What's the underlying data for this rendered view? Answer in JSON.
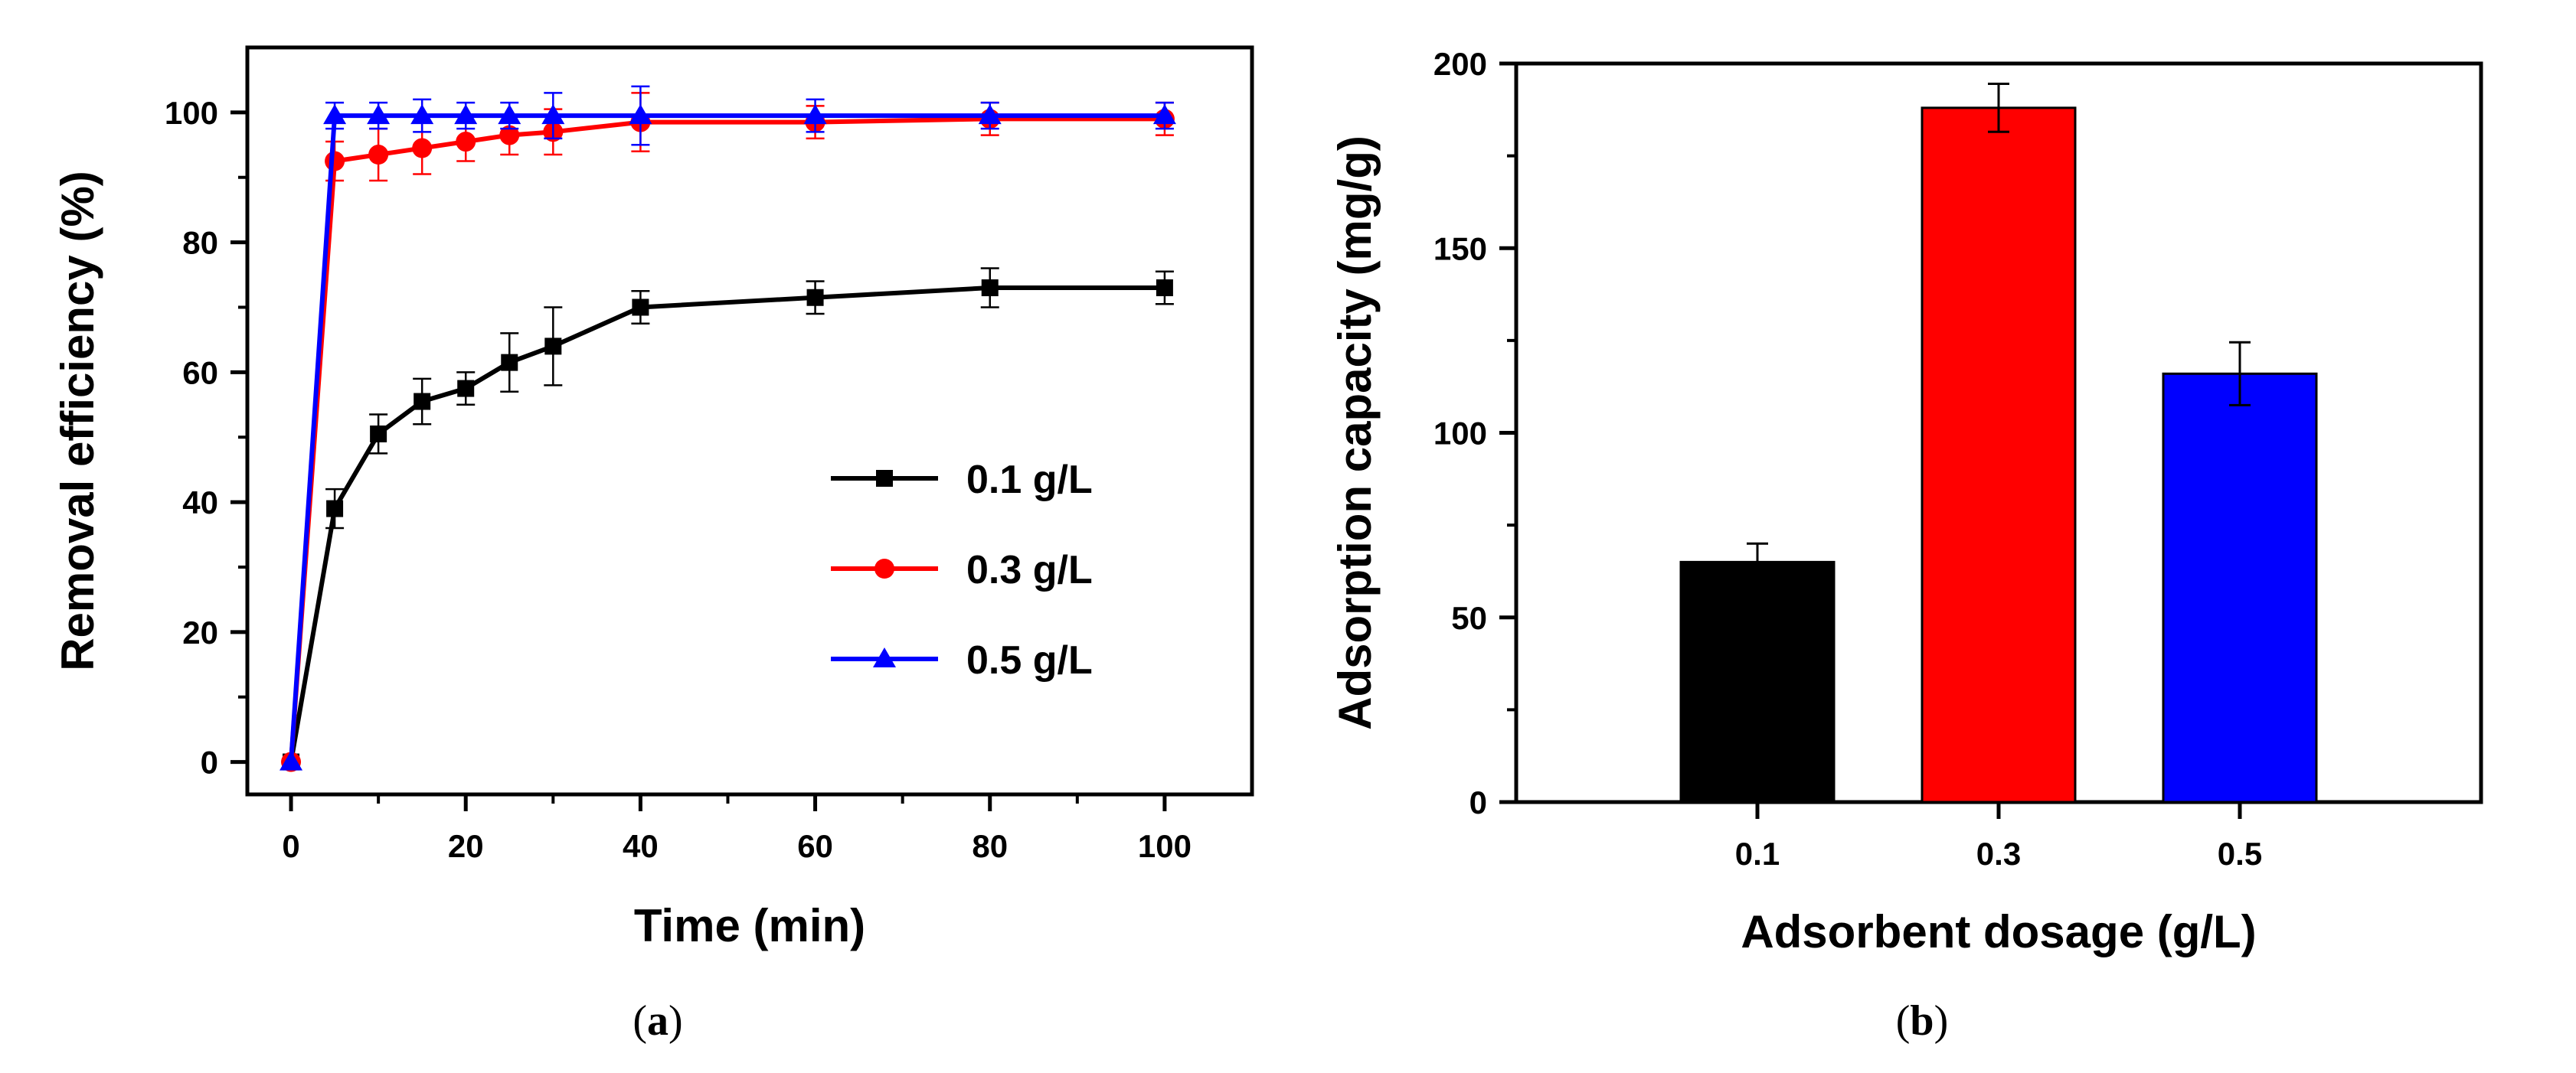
{
  "chart_data": [
    {
      "type": "line",
      "panel_label": "(a)",
      "panel_letter": "a",
      "xlabel": "Time (min)",
      "ylabel": "Removal efficiency (%)",
      "xlim": [
        -5,
        110
      ],
      "ylim": [
        -5,
        110
      ],
      "xticks": [
        0,
        20,
        40,
        60,
        80,
        100
      ],
      "yticks": [
        0,
        20,
        40,
        60,
        80,
        100
      ],
      "legend_position": "center-right",
      "series": [
        {
          "name": "0.1 g/L",
          "color": "#000000",
          "marker": "square",
          "x": [
            0,
            5,
            10,
            15,
            20,
            25,
            30,
            40,
            60,
            80,
            100
          ],
          "y": [
            0,
            39,
            50.5,
            55.5,
            57.5,
            61.5,
            64,
            70,
            71.5,
            73,
            73
          ],
          "err": [
            0,
            3,
            3,
            3.5,
            2.5,
            4.5,
            6,
            2.5,
            2.5,
            3,
            2.5
          ]
        },
        {
          "name": "0.3 g/L",
          "color": "#ff0000",
          "marker": "circle",
          "x": [
            0,
            5,
            10,
            15,
            20,
            25,
            30,
            40,
            60,
            80,
            100
          ],
          "y": [
            0,
            92.5,
            93.5,
            94.5,
            95.5,
            96.5,
            97,
            98.5,
            98.5,
            99,
            99
          ],
          "err": [
            0,
            3,
            4,
            4,
            3,
            3,
            3.5,
            4.5,
            2.5,
            2.5,
            2.5
          ]
        },
        {
          "name": "0.5 g/L",
          "color": "#0000ff",
          "marker": "triangle",
          "x": [
            0,
            5,
            10,
            15,
            20,
            25,
            30,
            40,
            60,
            80,
            100
          ],
          "y": [
            0,
            99.5,
            99.5,
            99.5,
            99.5,
            99.5,
            99.5,
            99.5,
            99.5,
            99.5,
            99.5
          ],
          "err": [
            0,
            2,
            2,
            2.5,
            2,
            2,
            3.5,
            4.5,
            2.5,
            2,
            2
          ]
        }
      ]
    },
    {
      "type": "bar",
      "panel_label": "(b)",
      "panel_letter": "b",
      "xlabel": "Adsorbent dosage (g/L)",
      "ylabel": "Adsorption capacity (mg/g)",
      "ylim": [
        0,
        200
      ],
      "yticks": [
        0,
        50,
        100,
        150,
        200
      ],
      "categories": [
        "0.1",
        "0.3",
        "0.5"
      ],
      "values": [
        65,
        188,
        116
      ],
      "errors": [
        5,
        6.5,
        8.5
      ],
      "colors": [
        "#000000",
        "#ff0000",
        "#0000ff"
      ]
    }
  ]
}
